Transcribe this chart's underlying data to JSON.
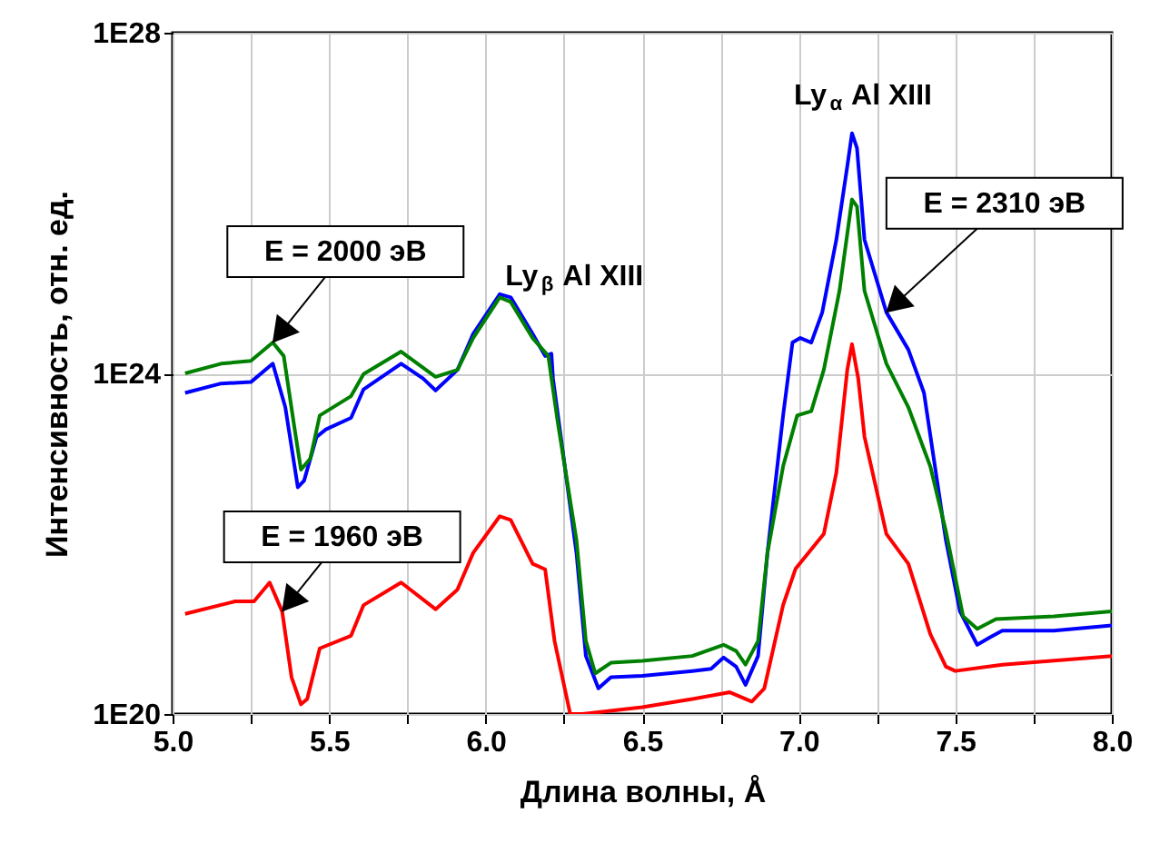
{
  "chart_data": {
    "type": "line",
    "xlabel": "Длина волны,  Å",
    "ylabel": "Интенсивность, отн. ед.",
    "xlim": [
      5.0,
      8.0
    ],
    "ylim": [
      1e+20,
      1e+28
    ],
    "log": "y",
    "grid": true,
    "line_style": "solid",
    "marker": "none",
    "xticks": [
      {
        "value": 5.0,
        "label": "5.0"
      },
      {
        "value": 5.25,
        "label": null
      },
      {
        "value": 5.5,
        "label": "5.5"
      },
      {
        "value": 5.75,
        "label": null
      },
      {
        "value": 6.0,
        "label": "6.0"
      },
      {
        "value": 6.25,
        "label": null
      },
      {
        "value": 6.5,
        "label": "6.5"
      },
      {
        "value": 6.75,
        "label": null
      },
      {
        "value": 7.0,
        "label": "7.0"
      },
      {
        "value": 7.25,
        "label": null
      },
      {
        "value": 7.5,
        "label": "7.5"
      },
      {
        "value": 7.75,
        "label": null
      },
      {
        "value": 8.0,
        "label": "8.0"
      }
    ],
    "yticks": [
      {
        "value": 1e+20,
        "label": "1E20"
      },
      {
        "value": 1e+24,
        "label": "1E24"
      },
      {
        "value": 1e+28,
        "label": "1E28"
      }
    ],
    "series": [
      {
        "color": "#0000ff",
        "x": [
          5.04,
          5.155,
          5.25,
          5.32,
          5.36,
          5.4,
          5.42,
          5.46,
          5.49,
          5.57,
          5.61,
          5.73,
          5.8,
          5.84,
          5.91,
          5.96,
          6.045,
          6.08,
          6.15,
          6.19,
          6.21,
          6.215,
          6.24,
          6.29,
          6.32,
          6.36,
          6.4,
          6.5,
          6.66,
          6.72,
          6.76,
          6.8,
          6.83,
          6.87,
          6.9,
          6.95,
          6.98,
          7.005,
          7.04,
          7.075,
          7.12,
          7.155,
          7.17,
          7.186,
          7.21,
          7.28,
          7.35,
          7.4,
          7.47,
          7.515,
          7.57,
          7.61,
          7.65,
          7.815,
          8.0
        ],
        "values": [
          5.9e+23,
          7.6e+23,
          7.9e+23,
          1.3e+24,
          4e+23,
          4.6e+22,
          5.5e+22,
          1.8e+23,
          2.2e+23,
          3e+23,
          6.5e+23,
          1.3e+24,
          8.7e+23,
          6.3e+23,
          1.1e+24,
          2.9e+24,
          8.5e+24,
          7.8e+24,
          2.9e+24,
          1.6e+24,
          1.7e+24,
          8.7e+23,
          1.8e+23,
          7.8e+21,
          4.8e+20,
          2e+20,
          2.7e+20,
          2.8e+20,
          3.2e+20,
          3.4e+20,
          4.6e+20,
          3.6e+20,
          2.2e+20,
          4.8e+20,
          7.8e+21,
          3.2e+23,
          2.3e+24,
          2.6e+24,
          2.3e+24,
          5.2e+24,
          3.7e+25,
          2.7e+26,
          6.6e+26,
          4.4e+26,
          3.7e+25,
          5.2e+24,
          1.9e+24,
          5.9e+23,
          1.1e+22,
          1.6e+21,
          6.5e+20,
          7.9e+20,
          9.5e+20,
          9.5e+20,
          1.1e+21
        ]
      },
      {
        "color": "#008000",
        "x": [
          5.04,
          5.155,
          5.25,
          5.32,
          5.355,
          5.39,
          5.41,
          5.44,
          5.47,
          5.57,
          5.61,
          5.73,
          5.84,
          5.91,
          5.96,
          6.045,
          6.08,
          6.15,
          6.2,
          6.23,
          6.29,
          6.32,
          6.35,
          6.4,
          6.5,
          6.66,
          6.76,
          6.8,
          6.83,
          6.87,
          6.9,
          6.95,
          6.995,
          7.04,
          7.08,
          7.13,
          7.17,
          7.186,
          7.21,
          7.28,
          7.35,
          7.42,
          7.47,
          7.525,
          7.57,
          7.63,
          7.815,
          8.0
        ],
        "values": [
          1e+24,
          1.3e+24,
          1.4e+24,
          2.3e+24,
          1.6e+24,
          2.2e+23,
          7.4e+22,
          1e+23,
          3.2e+23,
          5.4e+23,
          9.8e+23,
          1.8e+24,
          9.1e+23,
          1.1e+24,
          2.6e+24,
          7.8e+24,
          6.9e+24,
          2.6e+24,
          1.6e+24,
          2.7e+23,
          1.1e+22,
          7.2e+20,
          3e+20,
          4e+20,
          4.2e+20,
          4.8e+20,
          6.5e+20,
          5.5e+20,
          3.8e+20,
          7.2e+20,
          7.8e+21,
          8.1e+22,
          3.2e+23,
          3.6e+23,
          1.1e+24,
          9.3e+24,
          1.1e+26,
          9.1e+25,
          9.3e+24,
          1.3e+24,
          4e+23,
          8.1e+22,
          1.4e+22,
          1.4e+21,
          1e+21,
          1.3e+21,
          1.4e+21,
          1.6e+21
        ]
      },
      {
        "color": "#ff0000",
        "x": [
          5.04,
          5.2,
          5.26,
          5.31,
          5.35,
          5.38,
          5.41,
          5.43,
          5.47,
          5.57,
          5.61,
          5.73,
          5.84,
          5.91,
          5.96,
          6.045,
          6.08,
          6.15,
          6.19,
          6.22,
          6.27,
          6.31,
          6.5,
          6.66,
          6.78,
          6.85,
          6.89,
          6.95,
          6.99,
          7.08,
          7.12,
          7.155,
          7.17,
          7.19,
          7.21,
          7.28,
          7.35,
          7.42,
          7.47,
          7.5,
          7.65,
          8.0
        ],
        "values": [
          1.5e+21,
          2.1e+21,
          2.1e+21,
          3.5e+21,
          1.6e+21,
          2.7e+20,
          1.3e+20,
          1.5e+20,
          5.9e+20,
          8.3e+20,
          1.9e+21,
          3.5e+21,
          1.7e+21,
          2.9e+21,
          7.8e+21,
          2.1e+22,
          1.9e+22,
          5.8e+21,
          5e+21,
          7.2e+20,
          1e+20,
          1e+20,
          1.2e+20,
          1.5e+20,
          1.8e+20,
          1.4e+20,
          2e+20,
          1.9e+21,
          5.1e+21,
          1.3e+22,
          6.8e+22,
          1.1e+24,
          2.2e+24,
          8.7e+23,
          1.8e+23,
          1.3e+22,
          5.8e+21,
          8.7e+20,
          3.6e+20,
          3.2e+20,
          3.8e+20,
          4.8e+20
        ]
      }
    ],
    "annotations": [
      {
        "text": "E = 2000 эВ",
        "x": 5.32,
        "y": 2.3e+24
      },
      {
        "text": "E = 1960 эВ",
        "x": 5.35,
        "y": 1.6e+21
      },
      {
        "text": "E = 2310 эВ",
        "x": 7.28,
        "y": 5.2e+24
      },
      {
        "text": "Ly$_{β}$ Al XIII",
        "x": 6.045,
        "y": 8.5e+24
      },
      {
        "text": "Ly$_{α}$ Al XIII",
        "x": 7.17,
        "y": 6.6e+26
      }
    ]
  }
}
